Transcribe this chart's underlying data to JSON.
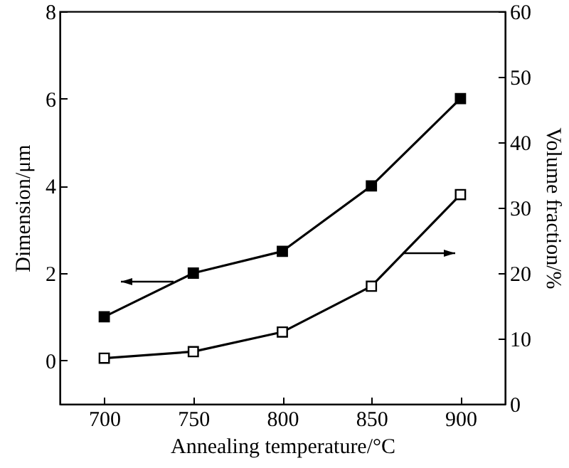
{
  "chart_data": {
    "type": "line",
    "xlabel": "Annealing temperature/°C",
    "ylabel": "Dimension/μm",
    "y2label": "Volume fraction/%",
    "x": [
      700,
      750,
      800,
      850,
      900
    ],
    "series": [
      {
        "color": "#000000",
        "values": [
          1.0,
          2.0,
          2.5,
          4.0,
          6.0
        ]
      },
      {
        "color": "#000000",
        "axis": "y2",
        "values": [
          7,
          8,
          11,
          18,
          32
        ]
      }
    ],
    "xlim": [
      675,
      925
    ],
    "xticks": [
      700,
      750,
      800,
      850,
      900
    ],
    "ylim": [
      -1,
      8
    ],
    "yticks": [
      0,
      2,
      4,
      6,
      8
    ],
    "y2lim": [
      0,
      60
    ],
    "y2ticks": [
      0,
      10,
      20,
      30,
      40,
      50,
      60
    ],
    "marker": "square",
    "line_style": "solid"
  }
}
